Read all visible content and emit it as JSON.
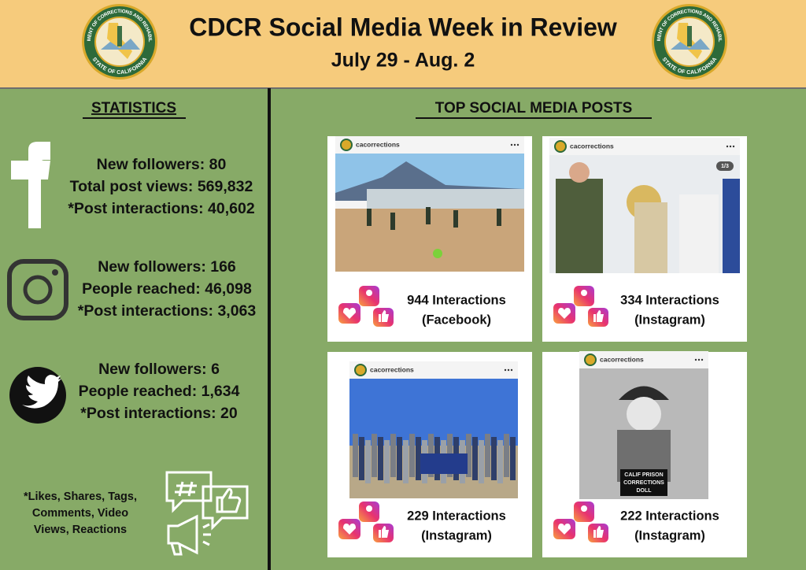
{
  "header": {
    "title": "CDCR Social Media Week in Review",
    "subtitle": "July 29 - Aug. 2",
    "seal_top": "DEPARTMENT OF CORRECTIONS AND REHABILITATION",
    "seal_bottom": "STATE OF CALIFORNIA"
  },
  "statistics": {
    "heading": "STATISTICS",
    "blocks": [
      {
        "lines": [
          "New followers: 80",
          "Total post views: 569,832",
          "*Post interactions: 40,602"
        ]
      },
      {
        "lines": [
          "New followers: 166",
          "People reached: 46,098",
          "*Post interactions: 3,063"
        ]
      },
      {
        "lines": [
          "New followers: 6",
          "People reached: 1,634",
          "*Post interactions: 20"
        ]
      }
    ],
    "footnote": [
      "*Likes, Shares, Tags,",
      "Comments, Video",
      "Views, Reactions"
    ]
  },
  "posts": {
    "heading": "TOP SOCIAL MEDIA POSTS",
    "items": [
      {
        "account": "cacorrections",
        "interactions": "944 Interactions",
        "platform": "(Facebook)"
      },
      {
        "account": "cacorrections",
        "interactions": "334 Interactions",
        "platform": "(Instagram)",
        "page_indicator": "1/3"
      },
      {
        "account": "cacorrections",
        "interactions": "229 Interactions",
        "platform": "(Instagram)"
      },
      {
        "account": "cacorrections",
        "interactions": "222 Interactions",
        "platform": "(Instagram)",
        "sign": [
          "CALIF PRISON",
          "CORRECTIONS",
          "DOLL"
        ]
      }
    ]
  }
}
